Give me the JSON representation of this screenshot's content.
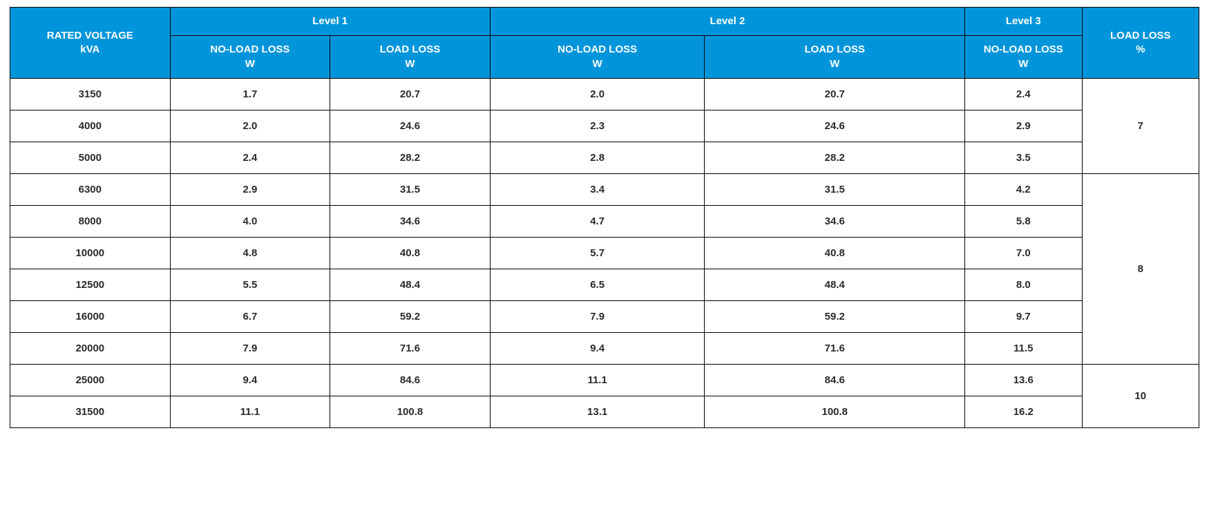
{
  "colors": {
    "header_bg": "#0095da",
    "header_fg": "#ffffff",
    "cell_bg": "#ffffff",
    "cell_fg": "#2a2a2a",
    "border": "#000000"
  },
  "typography": {
    "font_family": "Segoe UI, Arial, sans-serif",
    "header_fontsize_pt": 11,
    "cell_fontsize_pt": 11,
    "header_fontweight": 700,
    "cell_fontweight": 700
  },
  "table": {
    "type": "table",
    "column_widths_pct": [
      12.3,
      12.3,
      12.3,
      16.5,
      20.0,
      9.0,
      9.0
    ],
    "header": {
      "rated_voltage": {
        "line1": "RATED VOLTAGE",
        "line2": "kVA"
      },
      "level1": {
        "group": "Level 1",
        "noload": {
          "line1": "NO-LOAD LOSS",
          "line2": "W"
        },
        "load": {
          "line1": "LOAD LOSS",
          "line2": "W"
        }
      },
      "level2": {
        "group": "Level 2",
        "noload": {
          "line1": "NO-LOAD LOSS",
          "line2": "W"
        },
        "load": {
          "line1": "LOAD LOSS",
          "line2": "W"
        }
      },
      "level3": {
        "group": "Level 3",
        "noload": {
          "line1": "NO-LOAD LOSS",
          "line2": "W"
        }
      },
      "load_loss_pct": {
        "line1": "LOAD LOSS",
        "line2": "%"
      }
    },
    "groups": [
      {
        "load_loss_pct": "7",
        "rows": [
          {
            "kva": "3150",
            "l1_nl": "1.7",
            "l1_ld": "20.7",
            "l2_nl": "2.0",
            "l2_ld": "20.7",
            "l3_nl": "2.4"
          },
          {
            "kva": "4000",
            "l1_nl": "2.0",
            "l1_ld": "24.6",
            "l2_nl": "2.3",
            "l2_ld": "24.6",
            "l3_nl": "2.9"
          },
          {
            "kva": "5000",
            "l1_nl": "2.4",
            "l1_ld": "28.2",
            "l2_nl": "2.8",
            "l2_ld": "28.2",
            "l3_nl": "3.5"
          }
        ]
      },
      {
        "load_loss_pct": "8",
        "rows": [
          {
            "kva": "6300",
            "l1_nl": "2.9",
            "l1_ld": "31.5",
            "l2_nl": "3.4",
            "l2_ld": "31.5",
            "l3_nl": "4.2"
          },
          {
            "kva": "8000",
            "l1_nl": "4.0",
            "l1_ld": "34.6",
            "l2_nl": "4.7",
            "l2_ld": "34.6",
            "l3_nl": "5.8"
          },
          {
            "kva": "10000",
            "l1_nl": "4.8",
            "l1_ld": "40.8",
            "l2_nl": "5.7",
            "l2_ld": "40.8",
            "l3_nl": "7.0"
          },
          {
            "kva": "12500",
            "l1_nl": "5.5",
            "l1_ld": "48.4",
            "l2_nl": "6.5",
            "l2_ld": "48.4",
            "l3_nl": "8.0"
          },
          {
            "kva": "16000",
            "l1_nl": "6.7",
            "l1_ld": "59.2",
            "l2_nl": "7.9",
            "l2_ld": "59.2",
            "l3_nl": "9.7"
          },
          {
            "kva": "20000",
            "l1_nl": "7.9",
            "l1_ld": "71.6",
            "l2_nl": "9.4",
            "l2_ld": "71.6",
            "l3_nl": "11.5"
          }
        ]
      },
      {
        "load_loss_pct": "10",
        "rows": [
          {
            "kva": "25000",
            "l1_nl": "9.4",
            "l1_ld": "84.6",
            "l2_nl": "11.1",
            "l2_ld": "84.6",
            "l3_nl": "13.6"
          },
          {
            "kva": "31500",
            "l1_nl": "11.1",
            "l1_ld": "100.8",
            "l2_nl": "13.1",
            "l2_ld": "100.8",
            "l3_nl": "16.2"
          }
        ]
      }
    ]
  }
}
